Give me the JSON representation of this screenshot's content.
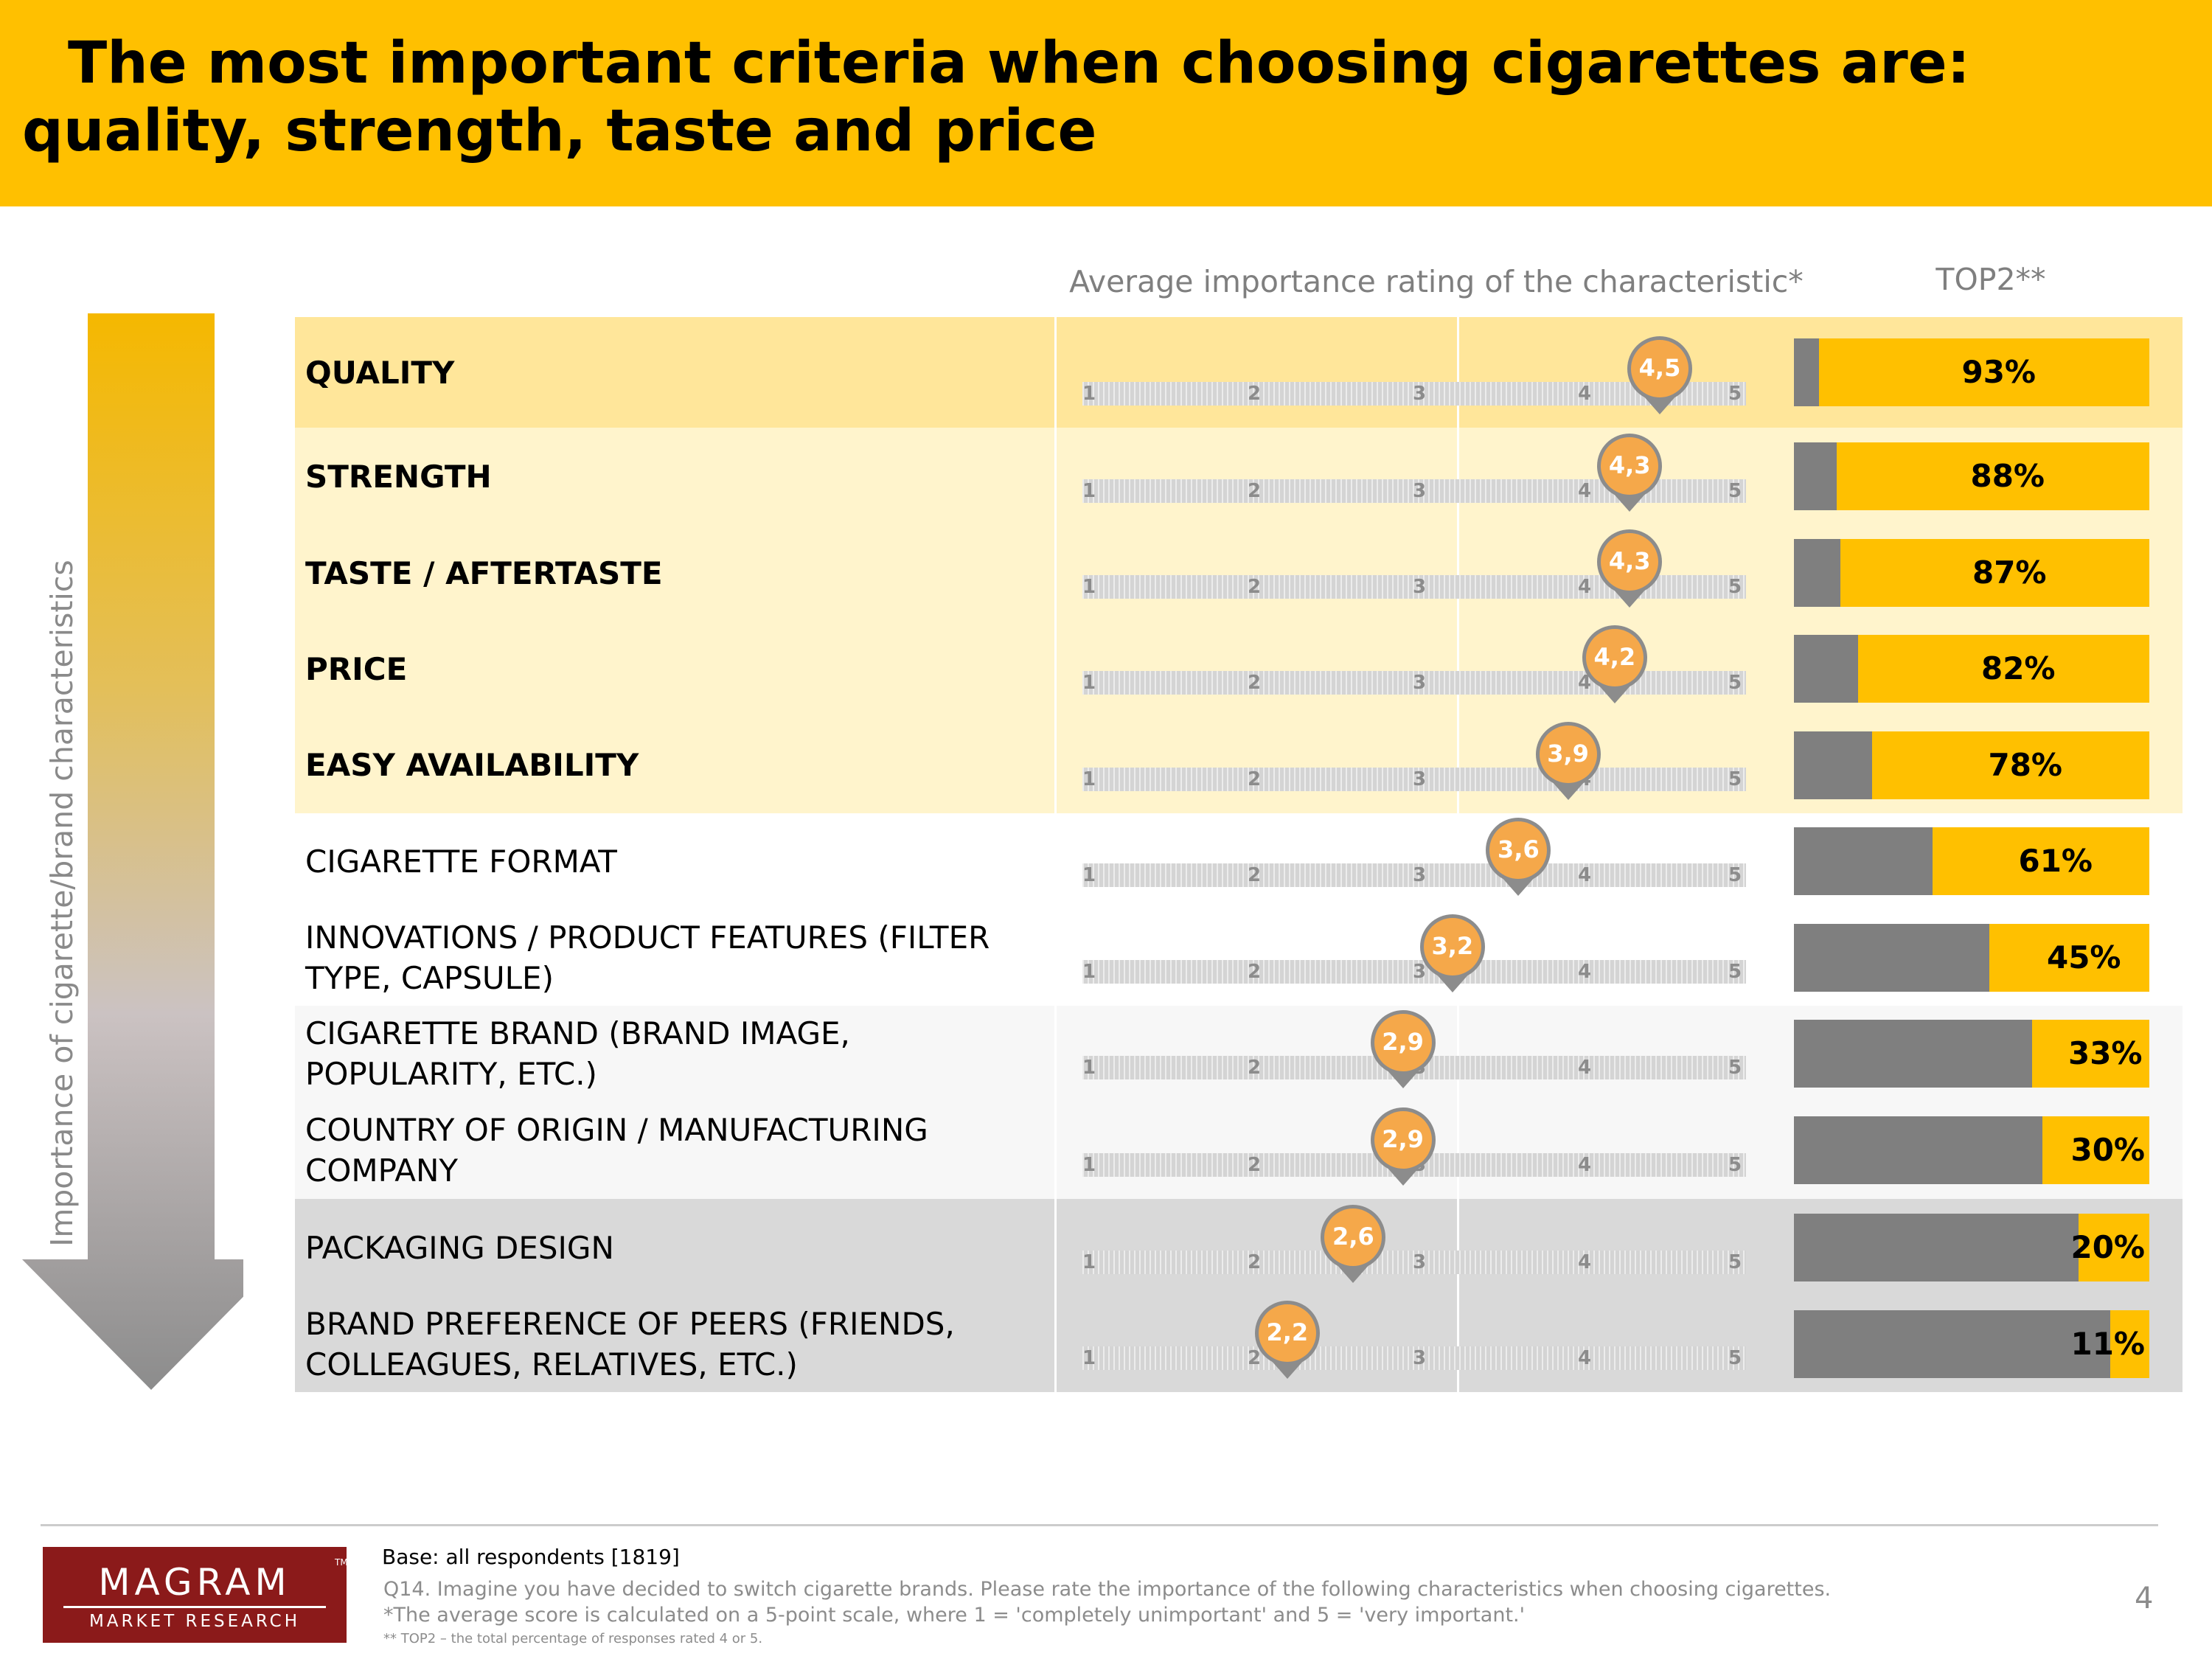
{
  "title": "The most important criteria when choosing cigarettes are: quality, strength, taste and price",
  "axis_label": "Importance of cigarette/brand characteristics",
  "column_headers": {
    "rating": "Average importance rating of the characteristic*",
    "top2": "TOP2**"
  },
  "colors": {
    "accent": "#FFC000",
    "gray_bar": "#7F7F7F",
    "marker": "#F5A84A",
    "row_highlight": "#FFE69A",
    "row_light": "#FFF4CC",
    "row_gray": "#D9D9D9",
    "logo": "#8B1A1A"
  },
  "chart_data": {
    "type": "table",
    "scale_ticks": [
      "1",
      "2",
      "3",
      "4",
      "5"
    ],
    "scale_range": [
      1,
      5
    ],
    "rows": [
      {
        "label": "QUALITY",
        "rating": 4.5,
        "rating_label": "4,5",
        "top2": 93,
        "top2_label": "93%"
      },
      {
        "label": "STRENGTH",
        "rating": 4.3,
        "rating_label": "4,3",
        "top2": 88,
        "top2_label": "88%"
      },
      {
        "label": "TASTE / AFTERTASTE",
        "rating": 4.3,
        "rating_label": "4,3",
        "top2": 87,
        "top2_label": "87%"
      },
      {
        "label": "PRICE",
        "rating": 4.2,
        "rating_label": "4,2",
        "top2": 82,
        "top2_label": "82%"
      },
      {
        "label": "EASY AVAILABILITY",
        "rating": 3.9,
        "rating_label": "3,9",
        "top2": 78,
        "top2_label": "78%"
      },
      {
        "label": "CIGARETTE FORMAT",
        "rating": 3.6,
        "rating_label": "3,6",
        "top2": 61,
        "top2_label": "61%"
      },
      {
        "label": "INNOVATIONS / PRODUCT FEATURES (FILTER TYPE, CAPSULE)",
        "rating": 3.2,
        "rating_label": "3,2",
        "top2": 45,
        "top2_label": "45%"
      },
      {
        "label": "CIGARETTE BRAND (BRAND IMAGE, POPULARITY, ETC.)",
        "rating": 2.9,
        "rating_label": "2,9",
        "top2": 33,
        "top2_label": "33%"
      },
      {
        "label": "COUNTRY OF ORIGIN / MANUFACTURING COMPANY",
        "rating": 2.9,
        "rating_label": "2,9",
        "top2": 30,
        "top2_label": "30%"
      },
      {
        "label": "PACKAGING DESIGN",
        "rating": 2.6,
        "rating_label": "2,6",
        "top2": 20,
        "top2_label": "20%"
      },
      {
        "label": "BRAND PREFERENCE OF PEERS (FRIENDS, COLLEAGUES, RELATIVES, ETC.)",
        "rating": 2.2,
        "rating_label": "2,2",
        "top2": 11,
        "top2_label": "11%"
      }
    ]
  },
  "logo": {
    "name": "MAGRAM",
    "trademark": "TM",
    "tagline": "MARKET RESEARCH"
  },
  "footer": {
    "base": "Base: all respondents [1819]",
    "question": "Q14. Imagine you have decided to switch cigarette brands. Please rate the importance of the following characteristics when choosing cigarettes.",
    "avg_note": "*The average score is calculated on a 5-point scale, where 1 = 'completely unimportant' and 5 = 'very important.'",
    "top2_note": "** TOP2 – the total percentage of responses rated 4 or 5.",
    "page_number": "4"
  }
}
